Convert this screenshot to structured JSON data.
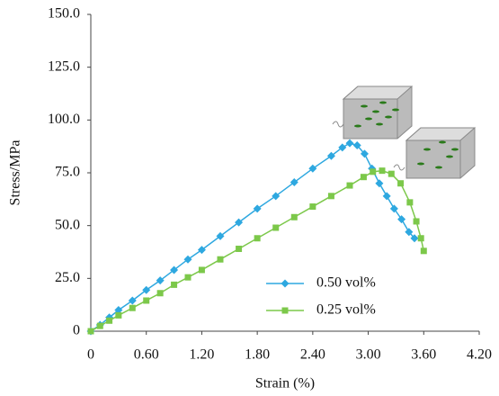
{
  "chart_data": {
    "type": "line",
    "xlabel": "Strain (%)",
    "ylabel": "Stress/MPa",
    "xlim": [
      0,
      4.2
    ],
    "xticks": [
      0,
      {
        "value": 0.6,
        "label": "0.60"
      },
      {
        "value": 1.2,
        "label": "1.20"
      },
      {
        "value": 1.8,
        "label": "1.80"
      },
      {
        "value": 2.4,
        "label": "2.40"
      },
      {
        "value": 3.0,
        "label": "3.00"
      },
      {
        "value": 3.6,
        "label": "3.60"
      },
      {
        "value": 4.2,
        "label": "4.20"
      }
    ],
    "ylim": [
      0,
      150
    ],
    "yticks": [
      0,
      {
        "value": 25,
        "label": "25.0"
      },
      {
        "value": 50,
        "label": "50.0"
      },
      {
        "value": 75,
        "label": "75.0"
      },
      {
        "value": 100,
        "label": "100.0"
      },
      {
        "value": 125,
        "label": "125.0"
      },
      {
        "value": 150,
        "label": "150.0"
      }
    ],
    "legend": "lower right",
    "series": [
      {
        "name": "0.50 vol%",
        "color": "#2ea8e0",
        "marker": "diamond",
        "x": [
          0,
          0.1,
          0.2,
          0.3,
          0.45,
          0.6,
          0.75,
          0.9,
          1.05,
          1.2,
          1.4,
          1.6,
          1.8,
          2.0,
          2.2,
          2.4,
          2.6,
          2.72,
          2.8,
          2.88,
          2.96,
          3.04,
          3.12,
          3.2,
          3.28,
          3.36,
          3.44,
          3.5
        ],
        "values": [
          0,
          3,
          6.5,
          10,
          14.5,
          19.5,
          24,
          29,
          34,
          38.5,
          45,
          51.5,
          58,
          64,
          70.5,
          77,
          83,
          87,
          89,
          88,
          84,
          77,
          70,
          64,
          58,
          53,
          47,
          44
        ]
      },
      {
        "name": "0.25 vol%",
        "color": "#7cc84a",
        "marker": "square",
        "x": [
          0,
          0.1,
          0.2,
          0.3,
          0.45,
          0.6,
          0.75,
          0.9,
          1.05,
          1.2,
          1.4,
          1.6,
          1.8,
          2.0,
          2.2,
          2.4,
          2.6,
          2.8,
          2.95,
          3.05,
          3.15,
          3.25,
          3.35,
          3.45,
          3.52,
          3.57,
          3.6
        ],
        "values": [
          0,
          2.5,
          5,
          7.5,
          11,
          14.5,
          18,
          22,
          25.5,
          29,
          34,
          39,
          44,
          49,
          54,
          59,
          64,
          69,
          73,
          75.5,
          76,
          74.5,
          70,
          61,
          52,
          44,
          38
        ]
      }
    ]
  }
}
